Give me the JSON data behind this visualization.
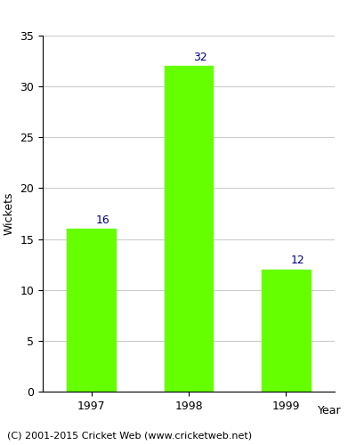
{
  "categories": [
    "1997",
    "1998",
    "1999"
  ],
  "values": [
    16,
    32,
    12
  ],
  "bar_color": "#66ff00",
  "bar_edgecolor": "#66ff00",
  "label_color": "#000080",
  "ylabel": "Wickets",
  "xlabel": "Year",
  "ylim": [
    0,
    35
  ],
  "yticks": [
    0,
    5,
    10,
    15,
    20,
    25,
    30,
    35
  ],
  "title": "",
  "footer": "(C) 2001-2015 Cricket Web (www.cricketweb.net)",
  "label_fontsize": 9,
  "axis_fontsize": 9,
  "footer_fontsize": 8,
  "background_color": "#ffffff",
  "grid_color": "#cccccc"
}
